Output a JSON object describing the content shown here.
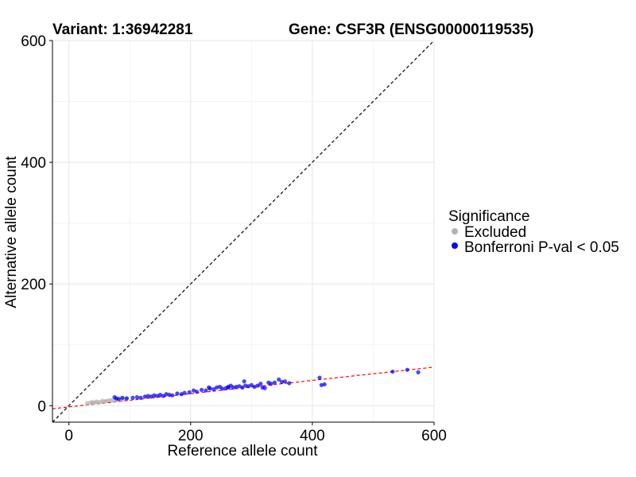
{
  "chart_data": {
    "type": "scatter",
    "title_left": "Variant: 1:36942281",
    "title_right": "Gene: CSF3R (ENSG00000119535)",
    "xlabel": "Reference allele count",
    "ylabel": "Alternative allele count",
    "xlim": [
      -27,
      600
    ],
    "ylim": [
      -27,
      600
    ],
    "xticks": [
      0,
      200,
      400,
      600
    ],
    "yticks": [
      0,
      200,
      400,
      600
    ],
    "grid": true,
    "reference_line": {
      "slope": 1,
      "intercept": 0,
      "color": "#000000",
      "style": "dashed"
    },
    "fit_line": {
      "slope": 0.109,
      "intercept": -2,
      "color": "#ff0000",
      "style": "dashed"
    },
    "legend": {
      "title": "Significance",
      "position": "right",
      "entries": [
        {
          "label": "Excluded",
          "color": "#b3b3b3"
        },
        {
          "label": "Bonferroni P-val < 0.05",
          "color": "#0000ff"
        }
      ]
    },
    "series": [
      {
        "name": "Excluded",
        "color": "#b3b3b3",
        "points": [
          [
            30,
            4
          ],
          [
            35,
            5
          ],
          [
            38,
            6
          ],
          [
            42,
            5
          ],
          [
            45,
            7
          ],
          [
            48,
            6
          ],
          [
            52,
            6
          ],
          [
            55,
            8
          ],
          [
            58,
            7
          ],
          [
            62,
            8
          ],
          [
            66,
            9
          ],
          [
            70,
            9
          ],
          [
            74,
            8
          ],
          [
            78,
            10
          ],
          [
            82,
            9
          ],
          [
            86,
            11
          ],
          [
            90,
            10
          ],
          [
            95,
            12
          ],
          [
            40,
            5
          ],
          [
            60,
            7
          ]
        ]
      },
      {
        "name": "Bonferroni P-val < 0.05",
        "color": "#0000ff",
        "points": [
          [
            75,
            14
          ],
          [
            78,
            12
          ],
          [
            82,
            11
          ],
          [
            88,
            13
          ],
          [
            95,
            12
          ],
          [
            105,
            13
          ],
          [
            112,
            14
          ],
          [
            118,
            13
          ],
          [
            125,
            15
          ],
          [
            130,
            16
          ],
          [
            135,
            15
          ],
          [
            140,
            17
          ],
          [
            145,
            16
          ],
          [
            150,
            18
          ],
          [
            155,
            16
          ],
          [
            160,
            19
          ],
          [
            165,
            18
          ],
          [
            170,
            17
          ],
          [
            178,
            20
          ],
          [
            185,
            19
          ],
          [
            190,
            21
          ],
          [
            198,
            22
          ],
          [
            205,
            25
          ],
          [
            210,
            23
          ],
          [
            218,
            26
          ],
          [
            225,
            25
          ],
          [
            232,
            28
          ],
          [
            238,
            27
          ],
          [
            243,
            30
          ],
          [
            248,
            31
          ],
          [
            252,
            28
          ],
          [
            258,
            29
          ],
          [
            262,
            31
          ],
          [
            266,
            33
          ],
          [
            270,
            30
          ],
          [
            275,
            31
          ],
          [
            280,
            32
          ],
          [
            285,
            30
          ],
          [
            290,
            33
          ],
          [
            295,
            32
          ],
          [
            300,
            34
          ],
          [
            305,
            31
          ],
          [
            310,
            33
          ],
          [
            315,
            36
          ],
          [
            318,
            30
          ],
          [
            322,
            29
          ],
          [
            328,
            38
          ],
          [
            332,
            36
          ],
          [
            338,
            38
          ],
          [
            345,
            43
          ],
          [
            350,
            39
          ],
          [
            355,
            40
          ],
          [
            362,
            37
          ],
          [
            230,
            30
          ],
          [
            262,
            30
          ],
          [
            288,
            40
          ],
          [
            412,
            46
          ],
          [
            415,
            34
          ],
          [
            420,
            35
          ],
          [
            532,
            56
          ],
          [
            556,
            59
          ],
          [
            574,
            55
          ]
        ]
      }
    ]
  }
}
